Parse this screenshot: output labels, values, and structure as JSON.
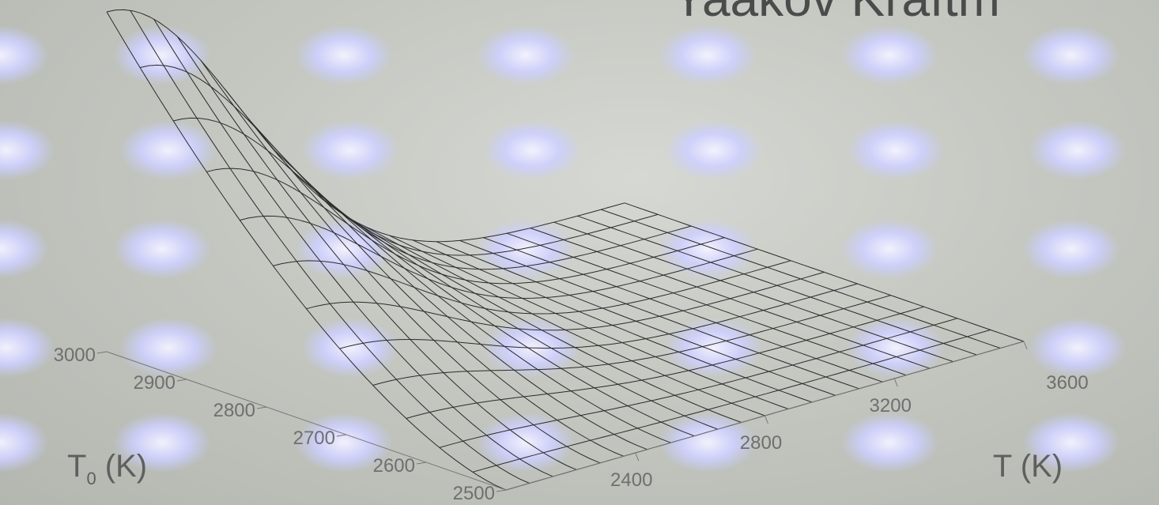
{
  "header": {
    "partial_title": "Yaakov Kraftm"
  },
  "chart_data": {
    "type": "surface",
    "title": "",
    "x_axis": {
      "label": "T (K)",
      "range": [
        2000,
        3600
      ],
      "ticks": [
        2400,
        2800,
        3200,
        3600
      ]
    },
    "y_axis": {
      "label_main": "T",
      "label_sub": "0",
      "label_unit": "(K)",
      "range": [
        2500,
        3000
      ],
      "ticks": [
        2500,
        2600,
        2700,
        2800,
        2900,
        3000
      ]
    },
    "z_axis": {
      "label": "",
      "range": [
        0,
        1
      ]
    },
    "grid": true,
    "mesh_resolution": {
      "nx": 22,
      "ny": 12
    },
    "surface_note_values": {
      "peak_at_T": 2000,
      "peak_at_T0": 3000,
      "peak_relative_height": 1.0,
      "min_relative_height": 0.0
    }
  },
  "background": {
    "colors": {
      "base": "#c4c8c1",
      "dot": "#c9ccff"
    }
  }
}
